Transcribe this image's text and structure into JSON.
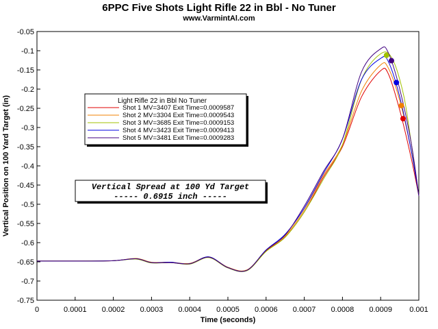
{
  "chart_data": {
    "type": "line",
    "title": "6PPC Five Shots Light Rifle 22 in Bbl - No Tuner",
    "subtitle": "www.VarmintAl.com",
    "xlabel": "Time (seconds)",
    "ylabel": "Vertical Position on 100 Yard Target (in)",
    "xlim": [
      0,
      0.001
    ],
    "ylim": [
      -0.75,
      -0.05
    ],
    "grid": false,
    "x_ticks": [
      "0",
      "0.0001",
      "0.0002",
      "0.0003",
      "0.0004",
      "0.0005",
      "0.0006",
      "0.0007",
      "0.0008",
      "0.0009",
      "0.001"
    ],
    "y_ticks": [
      "-0.05",
      "-0.1",
      "-0.15",
      "-0.2",
      "-0.25",
      "-0.3",
      "-0.35",
      "-0.4",
      "-0.45",
      "-0.5",
      "-0.55",
      "-0.6",
      "-0.65",
      "-0.7",
      "-0.75"
    ],
    "legend": {
      "title": "Light Rifle 22 in Bbl  No Tuner",
      "placement": "upper-left"
    },
    "annotation": {
      "line1": "Vertical Spread at 100 Yd Target",
      "line2": "----- 0.6915 inch -----"
    },
    "series": [
      {
        "name": "Shot 1 MV=3407 Exit Time=0.0009587",
        "color": "#e00000",
        "exit_point": [
          0.0009587,
          -0.277
        ],
        "points": [
          [
            0,
            -0.648
          ],
          [
            0.0001,
            -0.648
          ],
          [
            0.0002,
            -0.647
          ],
          [
            0.00026,
            -0.642
          ],
          [
            0.0003,
            -0.652
          ],
          [
            0.00035,
            -0.652
          ],
          [
            0.0004,
            -0.655
          ],
          [
            0.00045,
            -0.638
          ],
          [
            0.0005,
            -0.665
          ],
          [
            0.00055,
            -0.672
          ],
          [
            0.0006,
            -0.622
          ],
          [
            0.00065,
            -0.585
          ],
          [
            0.0007,
            -0.52
          ],
          [
            0.00075,
            -0.43
          ],
          [
            0.0008,
            -0.35
          ],
          [
            0.00085,
            -0.22
          ],
          [
            0.0009,
            -0.152
          ],
          [
            0.00092,
            -0.16
          ],
          [
            0.00095,
            -0.255
          ],
          [
            0.00098,
            -0.38
          ],
          [
            0.001,
            -0.478
          ]
        ]
      },
      {
        "name": "Shot 2 MV=3304 Exit Time=0.0009543",
        "color": "#f08000",
        "exit_point": [
          0.0009543,
          -0.243
        ],
        "points": [
          [
            0,
            -0.648
          ],
          [
            0.0001,
            -0.648
          ],
          [
            0.0002,
            -0.647
          ],
          [
            0.00026,
            -0.641
          ],
          [
            0.0003,
            -0.651
          ],
          [
            0.00035,
            -0.651
          ],
          [
            0.0004,
            -0.654
          ],
          [
            0.00045,
            -0.637
          ],
          [
            0.0005,
            -0.664
          ],
          [
            0.00055,
            -0.671
          ],
          [
            0.0006,
            -0.62
          ],
          [
            0.00065,
            -0.582
          ],
          [
            0.0007,
            -0.515
          ],
          [
            0.00075,
            -0.425
          ],
          [
            0.0008,
            -0.345
          ],
          [
            0.00085,
            -0.205
          ],
          [
            0.0009,
            -0.137
          ],
          [
            0.00092,
            -0.145
          ],
          [
            0.00095,
            -0.23
          ],
          [
            0.00098,
            -0.36
          ],
          [
            0.001,
            -0.478
          ]
        ]
      },
      {
        "name": "Shot 3 MV=3685 Exit Time=0.0009153",
        "color": "#a0c000",
        "exit_point": [
          0.0009153,
          -0.112
        ],
        "points": [
          [
            0,
            -0.648
          ],
          [
            0.0001,
            -0.648
          ],
          [
            0.0002,
            -0.647
          ],
          [
            0.00026,
            -0.643
          ],
          [
            0.0003,
            -0.653
          ],
          [
            0.00035,
            -0.652
          ],
          [
            0.0004,
            -0.656
          ],
          [
            0.00045,
            -0.639
          ],
          [
            0.0005,
            -0.666
          ],
          [
            0.00055,
            -0.673
          ],
          [
            0.0006,
            -0.623
          ],
          [
            0.00065,
            -0.586
          ],
          [
            0.0007,
            -0.52
          ],
          [
            0.00075,
            -0.435
          ],
          [
            0.0008,
            -0.345
          ],
          [
            0.00085,
            -0.175
          ],
          [
            0.0009,
            -0.108
          ],
          [
            0.00093,
            -0.12
          ],
          [
            0.00096,
            -0.215
          ],
          [
            0.00098,
            -0.34
          ],
          [
            0.001,
            -0.478
          ]
        ]
      },
      {
        "name": "Shot 4 MV=3423 Exit Time=0.0009413",
        "color": "#0000e0",
        "exit_point": [
          0.0009413,
          -0.183
        ],
        "points": [
          [
            0,
            -0.648
          ],
          [
            0.0001,
            -0.648
          ],
          [
            0.0002,
            -0.647
          ],
          [
            0.00026,
            -0.642
          ],
          [
            0.0003,
            -0.652
          ],
          [
            0.00035,
            -0.651
          ],
          [
            0.0004,
            -0.655
          ],
          [
            0.00045,
            -0.637
          ],
          [
            0.0005,
            -0.665
          ],
          [
            0.00055,
            -0.672
          ],
          [
            0.0006,
            -0.619
          ],
          [
            0.00065,
            -0.578
          ],
          [
            0.0007,
            -0.51
          ],
          [
            0.00075,
            -0.42
          ],
          [
            0.0008,
            -0.33
          ],
          [
            0.00085,
            -0.175
          ],
          [
            0.0009,
            -0.12
          ],
          [
            0.00092,
            -0.128
          ],
          [
            0.00095,
            -0.22
          ],
          [
            0.00098,
            -0.36
          ],
          [
            0.001,
            -0.478
          ]
        ]
      },
      {
        "name": "Shot 5 MV=3481 Exit Time=0.0009283",
        "color": "#400080",
        "exit_point": [
          0.0009283,
          -0.126
        ],
        "points": [
          [
            0,
            -0.648
          ],
          [
            0.0001,
            -0.648
          ],
          [
            0.0002,
            -0.647
          ],
          [
            0.00026,
            -0.642
          ],
          [
            0.0003,
            -0.652
          ],
          [
            0.00035,
            -0.652
          ],
          [
            0.0004,
            -0.655
          ],
          [
            0.00045,
            -0.638
          ],
          [
            0.0005,
            -0.665
          ],
          [
            0.00055,
            -0.672
          ],
          [
            0.0006,
            -0.62
          ],
          [
            0.00065,
            -0.58
          ],
          [
            0.0007,
            -0.505
          ],
          [
            0.00075,
            -0.415
          ],
          [
            0.0008,
            -0.33
          ],
          [
            0.00085,
            -0.155
          ],
          [
            0.0009,
            -0.095
          ],
          [
            0.00092,
            -0.105
          ],
          [
            0.00095,
            -0.2
          ],
          [
            0.00098,
            -0.34
          ],
          [
            0.001,
            -0.478
          ]
        ]
      }
    ]
  }
}
